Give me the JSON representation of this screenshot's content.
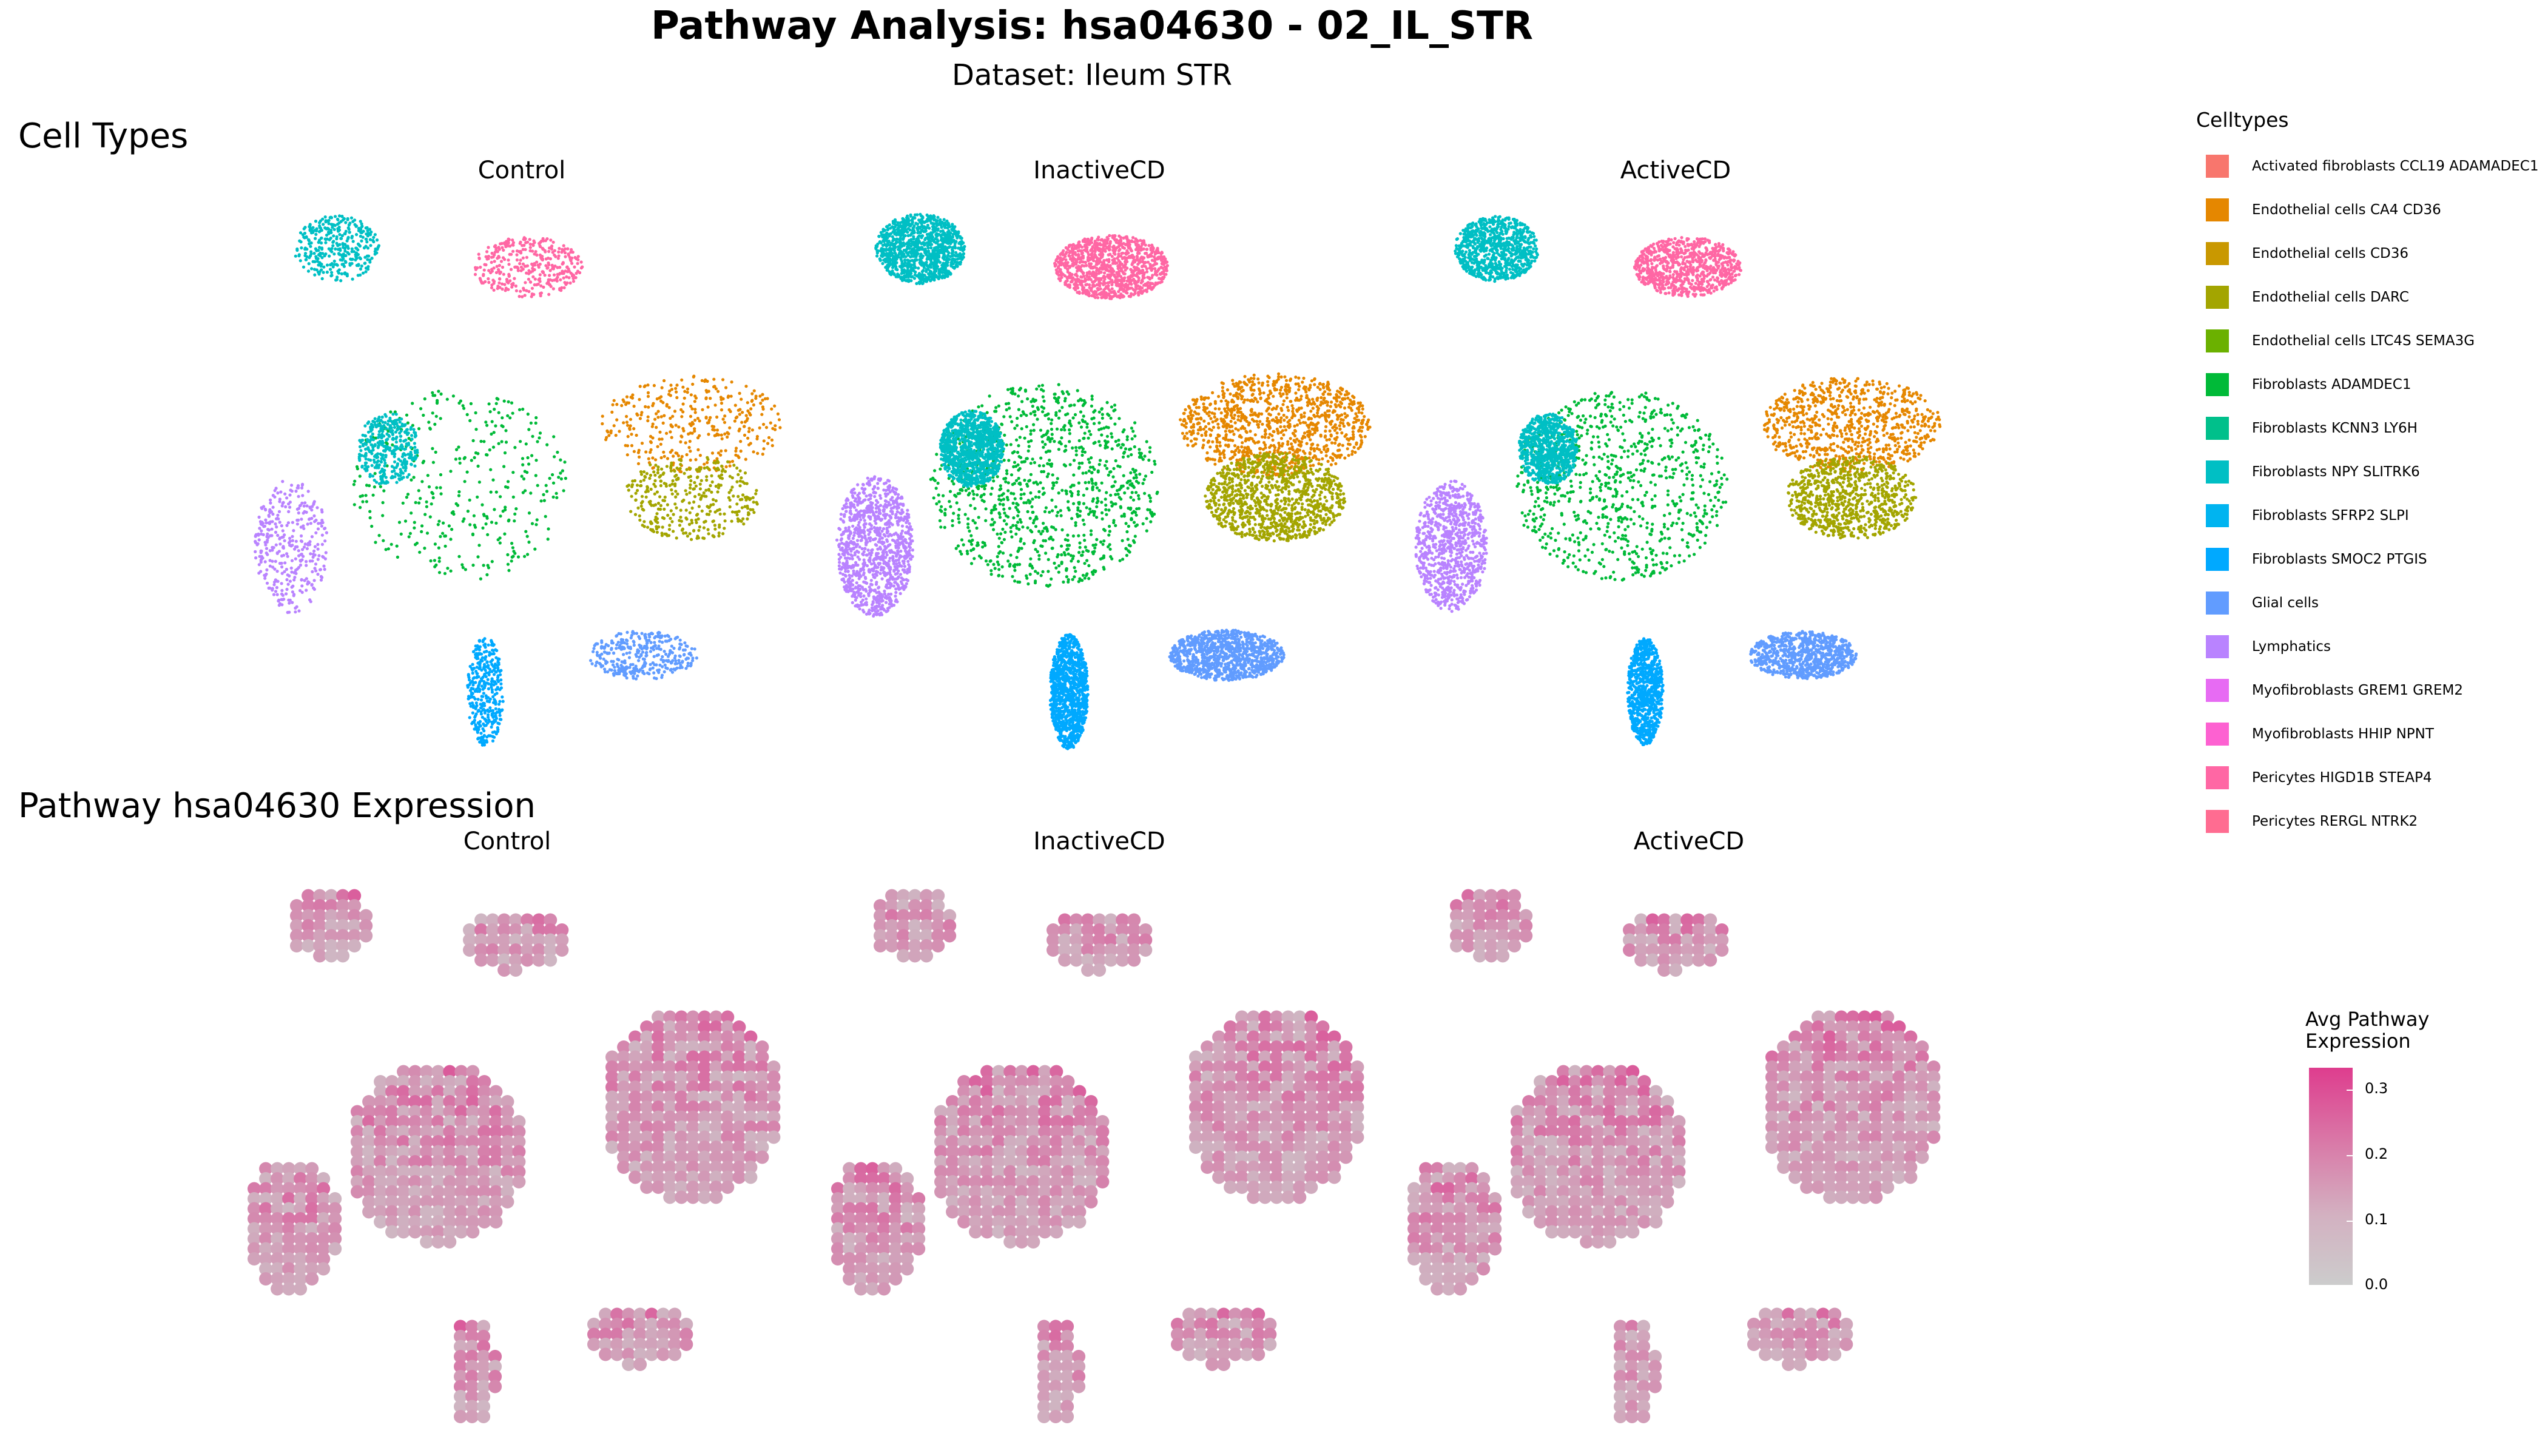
{
  "header": {
    "title": "Pathway Analysis: hsa04630 - 02_IL_STR",
    "subtitle": "Dataset: Ileum STR"
  },
  "sections": {
    "cell_types_title": "Cell Types",
    "pathway_title": "Pathway hsa04630 Expression"
  },
  "facets": {
    "top": [
      "Control",
      "InactiveCD",
      "ActiveCD"
    ],
    "bottom": [
      "Control",
      "InactiveCD",
      "ActiveCD"
    ]
  },
  "legend": {
    "title": "Celltypes",
    "items": [
      {
        "label": "Activated fibroblasts CCL19 ADAMADEC1",
        "color": "#F8766D"
      },
      {
        "label": "Endothelial cells CA4 CD36",
        "color": "#E58700"
      },
      {
        "label": "Endothelial cells CD36",
        "color": "#C99800"
      },
      {
        "label": "Endothelial cells DARC",
        "color": "#A3A500"
      },
      {
        "label": "Endothelial cells LTC4S SEMA3G",
        "color": "#6BB100"
      },
      {
        "label": "Fibroblasts ADAMDEC1",
        "color": "#00BA38"
      },
      {
        "label": "Fibroblasts KCNN3 LY6H",
        "color": "#00C08B"
      },
      {
        "label": "Fibroblasts NPY SLITRK6",
        "color": "#00BFC4"
      },
      {
        "label": "Fibroblasts SFRP2 SLPI",
        "color": "#00B4F0"
      },
      {
        "label": "Fibroblasts SMOC2 PTGIS",
        "color": "#00A9FF"
      },
      {
        "label": "Glial cells",
        "color": "#619CFF"
      },
      {
        "label": "Lymphatics",
        "color": "#B983FF"
      },
      {
        "label": "Myofibroblasts GREM1 GREM2",
        "color": "#E76BF3"
      },
      {
        "label": "Myofibroblasts HHIP NPNT",
        "color": "#FD61D1"
      },
      {
        "label": "Pericytes HIGD1B STEAP4",
        "color": "#FF67A4"
      },
      {
        "label": "Pericytes RERGL NTRK2",
        "color": "#FF6C91"
      }
    ]
  },
  "colorbar": {
    "title_line1": "Avg Pathway",
    "title_line2": "Expression",
    "ticks": [
      "0.3",
      "0.2",
      "0.1",
      "0.0"
    ],
    "range": [
      0.0,
      0.33
    ],
    "low_color": "#CCCCCC",
    "high_color": "#DE3D8E"
  },
  "chart_data": [
    {
      "type": "scatter",
      "title": "Cell Types",
      "facets": [
        "Control",
        "InactiveCD",
        "ActiveCD"
      ],
      "legend_position": "right",
      "grid": false,
      "clusters": [
        {
          "name": "Fibroblasts SFRP2 SLPI",
          "color": "#00BFC4",
          "group": "top-left"
        },
        {
          "name": "Pericytes HIGD1B STEAP4",
          "color": "#FF67A4",
          "group": "top-middle"
        },
        {
          "name": "Fibroblasts ADAMDEC1",
          "color": "#00BA38",
          "group": "center-left"
        },
        {
          "name": "Endothelial cells CA4 CD36",
          "color": "#E58700",
          "group": "center-right"
        },
        {
          "name": "Endothelial cells DARC",
          "color": "#A3A500",
          "group": "center-right"
        },
        {
          "name": "Myofibroblasts GREM1 GREM2",
          "color": "#B983FF",
          "group": "left"
        },
        {
          "name": "Glial cells",
          "color": "#00A9FF",
          "group": "bottom"
        },
        {
          "name": "Lymphatics",
          "color": "#619CFF",
          "group": "bottom-right"
        }
      ]
    },
    {
      "type": "heatmap",
      "title": "Pathway hsa04630 Expression",
      "facets": [
        "Control",
        "InactiveCD",
        "ActiveCD"
      ],
      "value_label": "Avg Pathway Expression",
      "value_range": [
        0.0,
        0.33
      ],
      "colorbar_ticks": [
        0.0,
        0.1,
        0.2,
        0.3
      ]
    }
  ]
}
